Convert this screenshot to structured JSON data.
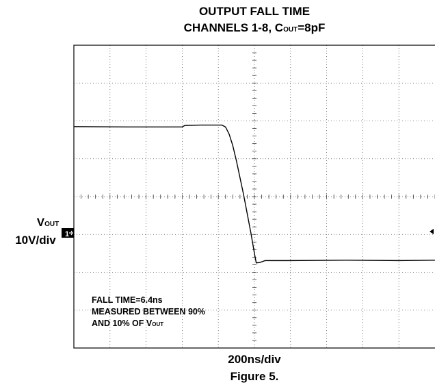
{
  "chart_data": {
    "type": "line",
    "title": "OUTPUT FALL TIME",
    "subtitle": [
      "CHANNELS 1-8, C",
      "OUT",
      "=8pF"
    ],
    "y_label": [
      "V",
      "OUT",
      "10V/div"
    ],
    "channel_marker": "1",
    "x_label": "200ns/div",
    "caption": "Figure 5.",
    "annotation": [
      "FALL TIME=6.4ns",
      "MEASURED BETWEEN 90%",
      "AND 10% OF V",
      "OUT"
    ],
    "color": "#000000",
    "x": [
      0,
      300,
      600,
      615,
      700,
      820,
      840,
      860,
      880,
      900,
      920,
      940,
      960,
      980,
      1000,
      1010,
      1030,
      1060,
      1200,
      1500,
      1800,
      2000
    ],
    "values": [
      28.5,
      28.4,
      28.4,
      28.8,
      28.9,
      28.9,
      28.4,
      26.5,
      23.5,
      19.5,
      15,
      10.5,
      5.5,
      0.5,
      -5,
      -7.5,
      -7.4,
      -6.9,
      -6.9,
      -6.8,
      -6.9,
      -6.8
    ],
    "xlim": [
      0,
      2000
    ],
    "ylim": [
      -30,
      50
    ]
  }
}
